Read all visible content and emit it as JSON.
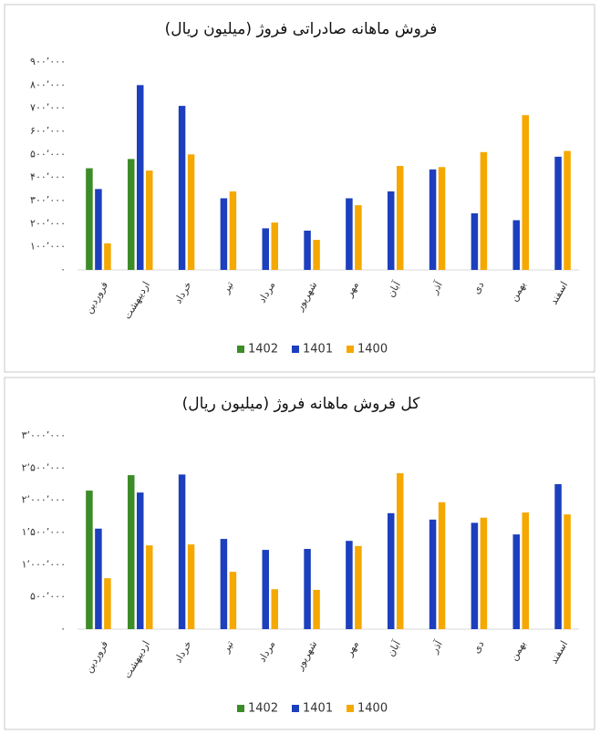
{
  "chart_data": [
    {
      "type": "bar",
      "title": "فروش ماهانه صادراتی فروژ (میلیون ریال)",
      "categories": [
        "فروردین",
        "اردیبهشت",
        "خرداد",
        "تیر",
        "مرداد",
        "شهریور",
        "مهر",
        "آبان",
        "آذر",
        "دی",
        "بهمن",
        "اسفند"
      ],
      "series": [
        {
          "name": "1402",
          "color": "#3c8c28",
          "values": [
            440000,
            480000,
            null,
            null,
            null,
            null,
            null,
            null,
            null,
            null,
            null,
            null
          ]
        },
        {
          "name": "1401",
          "color": "#1c3fbd",
          "values": [
            350000,
            800000,
            710000,
            310000,
            180000,
            170000,
            310000,
            340000,
            435000,
            245000,
            215000,
            490000
          ]
        },
        {
          "name": "1400",
          "color": "#f5a800",
          "values": [
            115000,
            430000,
            500000,
            340000,
            205000,
            130000,
            280000,
            450000,
            445000,
            510000,
            670000,
            515000
          ]
        }
      ],
      "ylim": [
        0,
        900000
      ],
      "yticks": [
        {
          "value": 0,
          "label": "۰"
        },
        {
          "value": 100000,
          "label": "۱۰۰٬۰۰۰"
        },
        {
          "value": 200000,
          "label": "۲۰۰٬۰۰۰"
        },
        {
          "value": 300000,
          "label": "۳۰۰٬۰۰۰"
        },
        {
          "value": 400000,
          "label": "۴۰۰٬۰۰۰"
        },
        {
          "value": 500000,
          "label": "۵۰۰٬۰۰۰"
        },
        {
          "value": 600000,
          "label": "۶۰۰٬۰۰۰"
        },
        {
          "value": 700000,
          "label": "۷۰۰٬۰۰۰"
        },
        {
          "value": 800000,
          "label": "۸۰۰٬۰۰۰"
        },
        {
          "value": 900000,
          "label": "۹۰۰٬۰۰۰"
        }
      ],
      "grid": false,
      "legend": "bottom"
    },
    {
      "type": "bar",
      "title": "کل فروش ماهانه فروژ (میلیون ریال)",
      "categories": [
        "فروردین",
        "اردیبهشت",
        "خرداد",
        "تیر",
        "مرداد",
        "شهریور",
        "مهر",
        "آبان",
        "آذر",
        "دی",
        "بهمن",
        "اسفند"
      ],
      "series": [
        {
          "name": "1402",
          "color": "#3c8c28",
          "values": [
            2150000,
            2390000,
            null,
            null,
            null,
            null,
            null,
            null,
            null,
            null,
            null,
            null
          ]
        },
        {
          "name": "1401",
          "color": "#1c3fbd",
          "values": [
            1560000,
            2120000,
            2400000,
            1400000,
            1230000,
            1245000,
            1370000,
            1800000,
            1700000,
            1650000,
            1470000,
            2250000
          ]
        },
        {
          "name": "1400",
          "color": "#f5a800",
          "values": [
            790000,
            1300000,
            1315000,
            890000,
            620000,
            610000,
            1290000,
            2420000,
            1970000,
            1730000,
            1810000,
            1780000
          ]
        }
      ],
      "ylim": [
        0,
        3000000
      ],
      "yticks": [
        {
          "value": 0,
          "label": "۰"
        },
        {
          "value": 500000,
          "label": "۵۰۰٬۰۰۰"
        },
        {
          "value": 1000000,
          "label": "۱٬۰۰۰٬۰۰۰"
        },
        {
          "value": 1500000,
          "label": "۱٬۵۰۰٬۰۰۰"
        },
        {
          "value": 2000000,
          "label": "۲٬۰۰۰٬۰۰۰"
        },
        {
          "value": 2500000,
          "label": "۲٬۵۰۰٬۰۰۰"
        },
        {
          "value": 3000000,
          "label": "۳٬۰۰۰٬۰۰۰"
        }
      ],
      "grid": false,
      "legend": "bottom"
    }
  ]
}
